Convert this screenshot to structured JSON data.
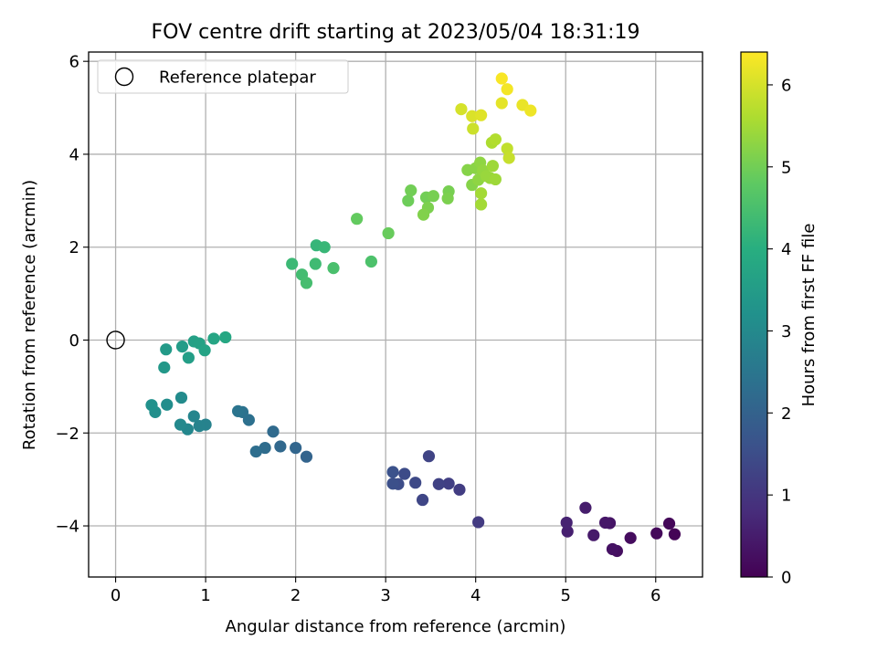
{
  "chart_data": {
    "type": "scatter",
    "title": "FOV centre drift starting at 2023/05/04 18:31:19",
    "xlabel": "Angular distance from reference (arcmin)",
    "ylabel": "Rotation from reference (arcmin)",
    "xlim": [
      -0.3,
      6.52
    ],
    "ylim": [
      -5.1,
      6.2
    ],
    "xticks": [
      0,
      1,
      2,
      3,
      4,
      5,
      6
    ],
    "yticks": [
      -4,
      -2,
      0,
      2,
      4,
      6
    ],
    "grid": true,
    "legend": {
      "placement": "top-left",
      "label": "Reference platepar"
    },
    "reference_point": {
      "x": 0,
      "y": 0
    },
    "colorbar": {
      "label": "Hours from first FF file",
      "range": [
        0,
        6.4
      ],
      "ticks": [
        0,
        1,
        2,
        3,
        4,
        5,
        6
      ],
      "colormap": "viridis"
    },
    "series": [
      {
        "points": [
          {
            "x": 6.21,
            "y": -4.18,
            "c": 0.05
          },
          {
            "x": 6.15,
            "y": -3.95,
            "c": 0.1
          },
          {
            "x": 6.01,
            "y": -4.16,
            "c": 0.15
          },
          {
            "x": 5.72,
            "y": -4.26,
            "c": 0.2
          },
          {
            "x": 5.57,
            "y": -4.54,
            "c": 0.25
          },
          {
            "x": 5.52,
            "y": -4.5,
            "c": 0.3
          },
          {
            "x": 5.49,
            "y": -3.94,
            "c": 0.35
          },
          {
            "x": 5.44,
            "y": -3.93,
            "c": 0.4
          },
          {
            "x": 5.31,
            "y": -4.2,
            "c": 0.45
          },
          {
            "x": 5.22,
            "y": -3.61,
            "c": 0.5
          },
          {
            "x": 5.02,
            "y": -4.12,
            "c": 0.55
          },
          {
            "x": 5.01,
            "y": -3.93,
            "c": 0.6
          },
          {
            "x": 4.03,
            "y": -3.92,
            "c": 1.1
          },
          {
            "x": 3.82,
            "y": -3.22,
            "c": 1.15
          },
          {
            "x": 3.7,
            "y": -3.09,
            "c": 1.2
          },
          {
            "x": 3.59,
            "y": -3.1,
            "c": 1.25
          },
          {
            "x": 3.48,
            "y": -2.5,
            "c": 1.3
          },
          {
            "x": 3.41,
            "y": -3.44,
            "c": 1.35
          },
          {
            "x": 3.33,
            "y": -3.07,
            "c": 1.4
          },
          {
            "x": 3.21,
            "y": -2.88,
            "c": 1.45
          },
          {
            "x": 3.14,
            "y": -3.1,
            "c": 1.5
          },
          {
            "x": 3.08,
            "y": -3.09,
            "c": 1.55
          },
          {
            "x": 3.08,
            "y": -2.84,
            "c": 1.6
          },
          {
            "x": 2.12,
            "y": -2.51,
            "c": 2.05
          },
          {
            "x": 2.0,
            "y": -2.32,
            "c": 2.1
          },
          {
            "x": 1.83,
            "y": -2.29,
            "c": 2.15
          },
          {
            "x": 1.75,
            "y": -1.97,
            "c": 2.2
          },
          {
            "x": 1.66,
            "y": -2.32,
            "c": 2.25
          },
          {
            "x": 1.56,
            "y": -2.4,
            "c": 2.3
          },
          {
            "x": 1.48,
            "y": -1.72,
            "c": 2.35
          },
          {
            "x": 1.41,
            "y": -1.55,
            "c": 2.4
          },
          {
            "x": 1.36,
            "y": -1.53,
            "c": 2.45
          },
          {
            "x": 1.0,
            "y": -1.82,
            "c": 2.8
          },
          {
            "x": 0.93,
            "y": -1.85,
            "c": 2.85
          },
          {
            "x": 0.87,
            "y": -1.64,
            "c": 2.9
          },
          {
            "x": 0.8,
            "y": -1.92,
            "c": 2.95
          },
          {
            "x": 0.72,
            "y": -1.82,
            "c": 3.0
          },
          {
            "x": 0.73,
            "y": -1.24,
            "c": 3.05
          },
          {
            "x": 0.57,
            "y": -1.39,
            "c": 3.1
          },
          {
            "x": 0.44,
            "y": -1.55,
            "c": 3.15
          },
          {
            "x": 0.4,
            "y": -1.4,
            "c": 3.2
          },
          {
            "x": 0.54,
            "y": -0.59,
            "c": 3.4
          },
          {
            "x": 0.56,
            "y": -0.2,
            "c": 3.45
          },
          {
            "x": 0.74,
            "y": -0.14,
            "c": 3.5
          },
          {
            "x": 0.81,
            "y": -0.38,
            "c": 3.55
          },
          {
            "x": 0.87,
            "y": -0.03,
            "c": 3.6
          },
          {
            "x": 0.93,
            "y": -0.07,
            "c": 3.65
          },
          {
            "x": 0.99,
            "y": -0.22,
            "c": 3.7
          },
          {
            "x": 1.09,
            "y": 0.03,
            "c": 3.75
          },
          {
            "x": 1.22,
            "y": 0.06,
            "c": 3.8
          },
          {
            "x": 2.23,
            "y": 2.04,
            "c": 4.2
          },
          {
            "x": 2.32,
            "y": 2.0,
            "c": 4.25
          },
          {
            "x": 1.96,
            "y": 1.64,
            "c": 4.3
          },
          {
            "x": 2.22,
            "y": 1.64,
            "c": 4.35
          },
          {
            "x": 2.07,
            "y": 1.41,
            "c": 4.4
          },
          {
            "x": 2.12,
            "y": 1.23,
            "c": 4.45
          },
          {
            "x": 2.42,
            "y": 1.55,
            "c": 4.5
          },
          {
            "x": 2.84,
            "y": 1.69,
            "c": 4.55
          },
          {
            "x": 2.68,
            "y": 2.61,
            "c": 4.85
          },
          {
            "x": 3.03,
            "y": 2.3,
            "c": 4.9
          },
          {
            "x": 3.25,
            "y": 3.0,
            "c": 4.95
          },
          {
            "x": 3.28,
            "y": 3.22,
            "c": 5.0
          },
          {
            "x": 3.45,
            "y": 3.07,
            "c": 5.0
          },
          {
            "x": 3.53,
            "y": 3.1,
            "c": 5.05
          },
          {
            "x": 3.7,
            "y": 3.2,
            "c": 5.05
          },
          {
            "x": 3.69,
            "y": 3.05,
            "c": 5.1
          },
          {
            "x": 3.47,
            "y": 2.85,
            "c": 5.1
          },
          {
            "x": 3.42,
            "y": 2.7,
            "c": 5.15
          },
          {
            "x": 3.91,
            "y": 3.66,
            "c": 5.2
          },
          {
            "x": 3.96,
            "y": 3.34,
            "c": 5.2
          },
          {
            "x": 4.0,
            "y": 3.7,
            "c": 5.25
          },
          {
            "x": 4.03,
            "y": 3.45,
            "c": 5.3
          },
          {
            "x": 4.05,
            "y": 3.82,
            "c": 5.3
          },
          {
            "x": 4.08,
            "y": 3.65,
            "c": 5.35
          },
          {
            "x": 4.12,
            "y": 3.53,
            "c": 5.4
          },
          {
            "x": 4.16,
            "y": 3.49,
            "c": 5.4
          },
          {
            "x": 4.19,
            "y": 3.75,
            "c": 5.45
          },
          {
            "x": 4.22,
            "y": 3.46,
            "c": 5.45
          },
          {
            "x": 4.06,
            "y": 3.16,
            "c": 5.5
          },
          {
            "x": 4.06,
            "y": 2.92,
            "c": 5.5
          },
          {
            "x": 4.18,
            "y": 4.25,
            "c": 5.6
          },
          {
            "x": 4.22,
            "y": 4.32,
            "c": 5.65
          },
          {
            "x": 4.35,
            "y": 4.12,
            "c": 5.8
          },
          {
            "x": 4.37,
            "y": 3.92,
            "c": 5.85
          },
          {
            "x": 3.97,
            "y": 4.55,
            "c": 5.9
          },
          {
            "x": 3.84,
            "y": 4.97,
            "c": 6.0
          },
          {
            "x": 3.96,
            "y": 4.82,
            "c": 6.05
          },
          {
            "x": 4.06,
            "y": 4.84,
            "c": 6.1
          },
          {
            "x": 4.29,
            "y": 5.1,
            "c": 6.15
          },
          {
            "x": 4.52,
            "y": 5.06,
            "c": 6.2
          },
          {
            "x": 4.61,
            "y": 4.94,
            "c": 6.25
          },
          {
            "x": 4.35,
            "y": 5.4,
            "c": 6.3
          },
          {
            "x": 4.29,
            "y": 5.63,
            "c": 6.35
          }
        ]
      }
    ]
  }
}
